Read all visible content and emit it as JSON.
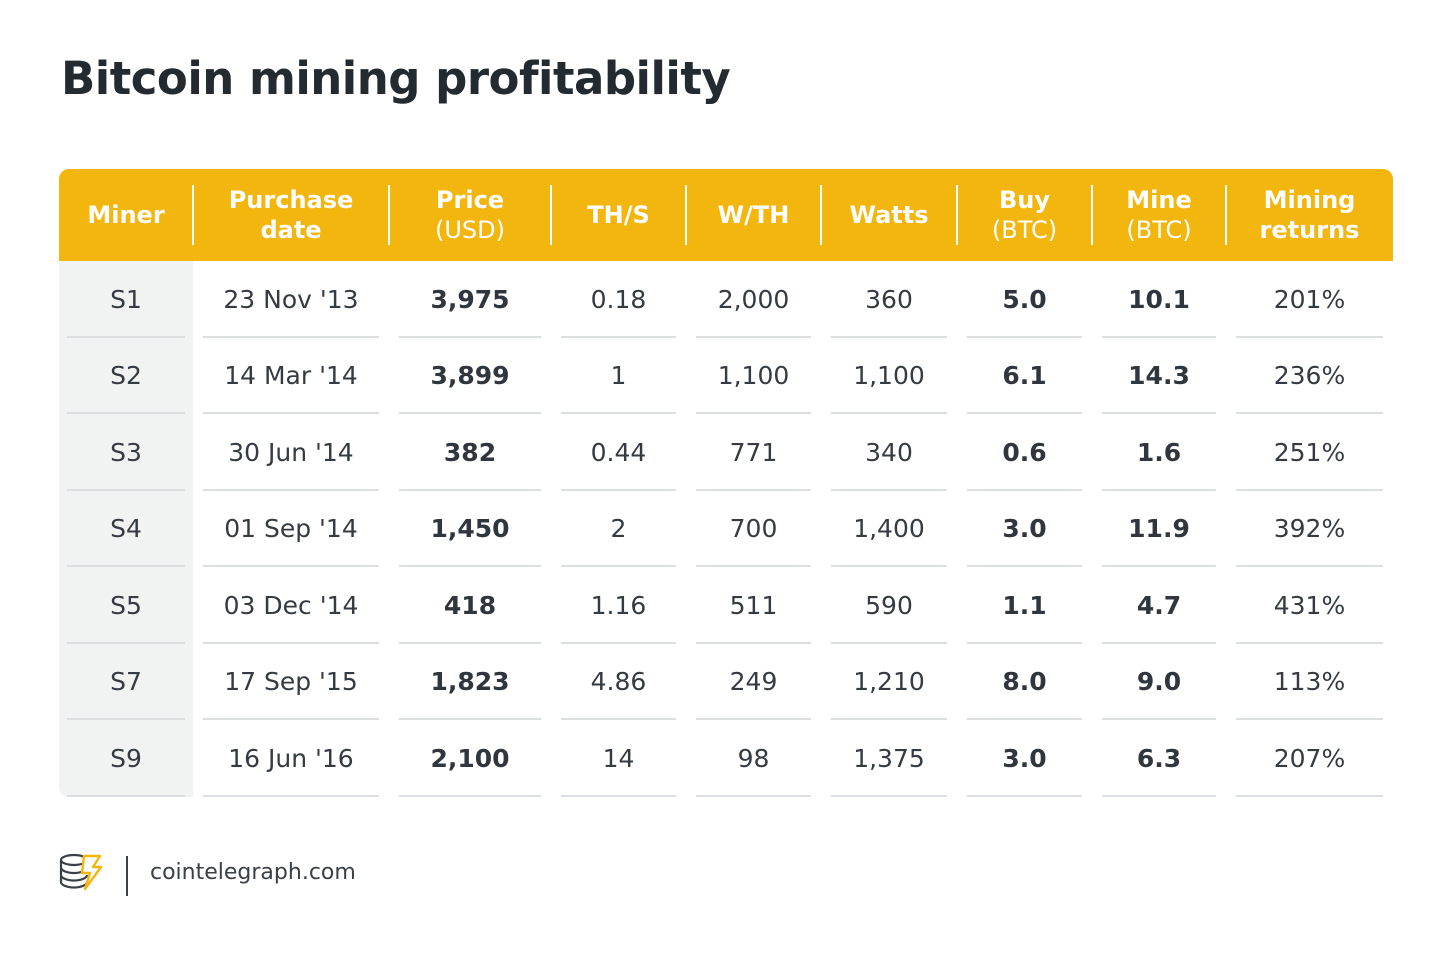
{
  "title": "Bitcoin mining profitability",
  "colors": {
    "header": "#f3b60e",
    "header_text": "#ffffff",
    "miner_column": "#f1f2f2",
    "row_divider": "#dcdfe1"
  },
  "chart_data": {
    "type": "table",
    "columns": [
      {
        "key": "miner",
        "label": "Miner",
        "sub": ""
      },
      {
        "key": "purchase_date",
        "label": "Purchase date",
        "sub": ""
      },
      {
        "key": "price",
        "label": "Price",
        "sub": "(USD)"
      },
      {
        "key": "ths",
        "label": "TH/S",
        "sub": ""
      },
      {
        "key": "wth",
        "label": "W/TH",
        "sub": ""
      },
      {
        "key": "watts",
        "label": "Watts",
        "sub": ""
      },
      {
        "key": "buy",
        "label": "Buy",
        "sub": "(BTC)"
      },
      {
        "key": "mine",
        "label": "Mine",
        "sub": "(BTC)"
      },
      {
        "key": "returns",
        "label": "Mining returns",
        "sub": ""
      }
    ],
    "bold_columns": [
      "price",
      "buy",
      "mine"
    ],
    "rows": [
      [
        "S1",
        "23 Nov '13",
        "3,975",
        "0.18",
        "2,000",
        "360",
        "5.0",
        "10.1",
        "201%"
      ],
      [
        "S2",
        "14 Mar '14",
        "3,899",
        "1",
        "1,100",
        "1,100",
        "6.1",
        "14.3",
        "236%"
      ],
      [
        "S3",
        "30 Jun '14",
        "382",
        "0.44",
        "771",
        "340",
        "0.6",
        "1.6",
        "251%"
      ],
      [
        "S4",
        "01 Sep '14",
        "1,450",
        "2",
        "700",
        "1,400",
        "3.0",
        "11.9",
        "392%"
      ],
      [
        "S5",
        "03 Dec '14",
        "418",
        "1.16",
        "511",
        "590",
        "1.1",
        "4.7",
        "431%"
      ],
      [
        "S7",
        "17 Sep '15",
        "1,823",
        "4.86",
        "249",
        "1,210",
        "8.0",
        "9.0",
        "113%"
      ],
      [
        "S9",
        "16 Jun '16",
        "2,100",
        "14",
        "98",
        "1,375",
        "3.0",
        "6.3",
        "207%"
      ]
    ]
  },
  "footer": {
    "logo_icon": "cointelegraph-logo-icon",
    "site": "cointelegraph.com"
  }
}
